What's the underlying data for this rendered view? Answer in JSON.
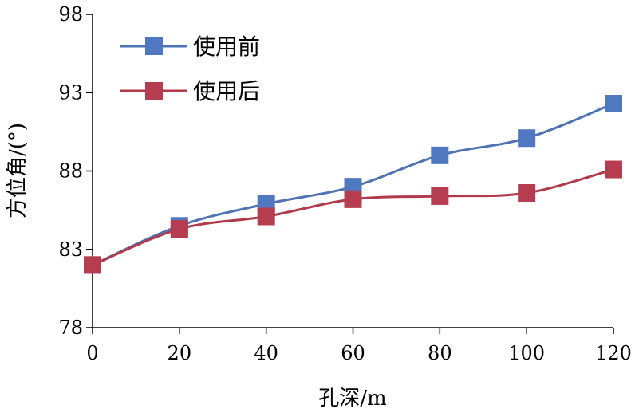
{
  "chart_data": {
    "type": "line",
    "x": [
      0,
      20,
      40,
      60,
      80,
      100,
      120
    ],
    "xticks": [
      "0",
      "20",
      "40",
      "60",
      "80",
      "100",
      "120"
    ],
    "yticks": [
      "78",
      "83",
      "88",
      "93",
      "98"
    ],
    "xlim": [
      0,
      120
    ],
    "ylim": [
      78,
      98
    ],
    "xlabel": "孔深/m",
    "ylabel": "方位角/(°)",
    "grid": false,
    "legend_position": "top-left",
    "series": [
      {
        "name": "使用前",
        "color": "#4e73b2",
        "marker_color": "#4f78c0",
        "values": [
          82.0,
          84.5,
          85.9,
          87.0,
          89.0,
          90.1,
          92.3
        ]
      },
      {
        "name": "使用后",
        "color": "#b03a4a",
        "marker_color": "#b53d4f",
        "values": [
          82.0,
          84.3,
          85.1,
          86.2,
          86.4,
          86.6,
          88.1
        ]
      }
    ]
  }
}
